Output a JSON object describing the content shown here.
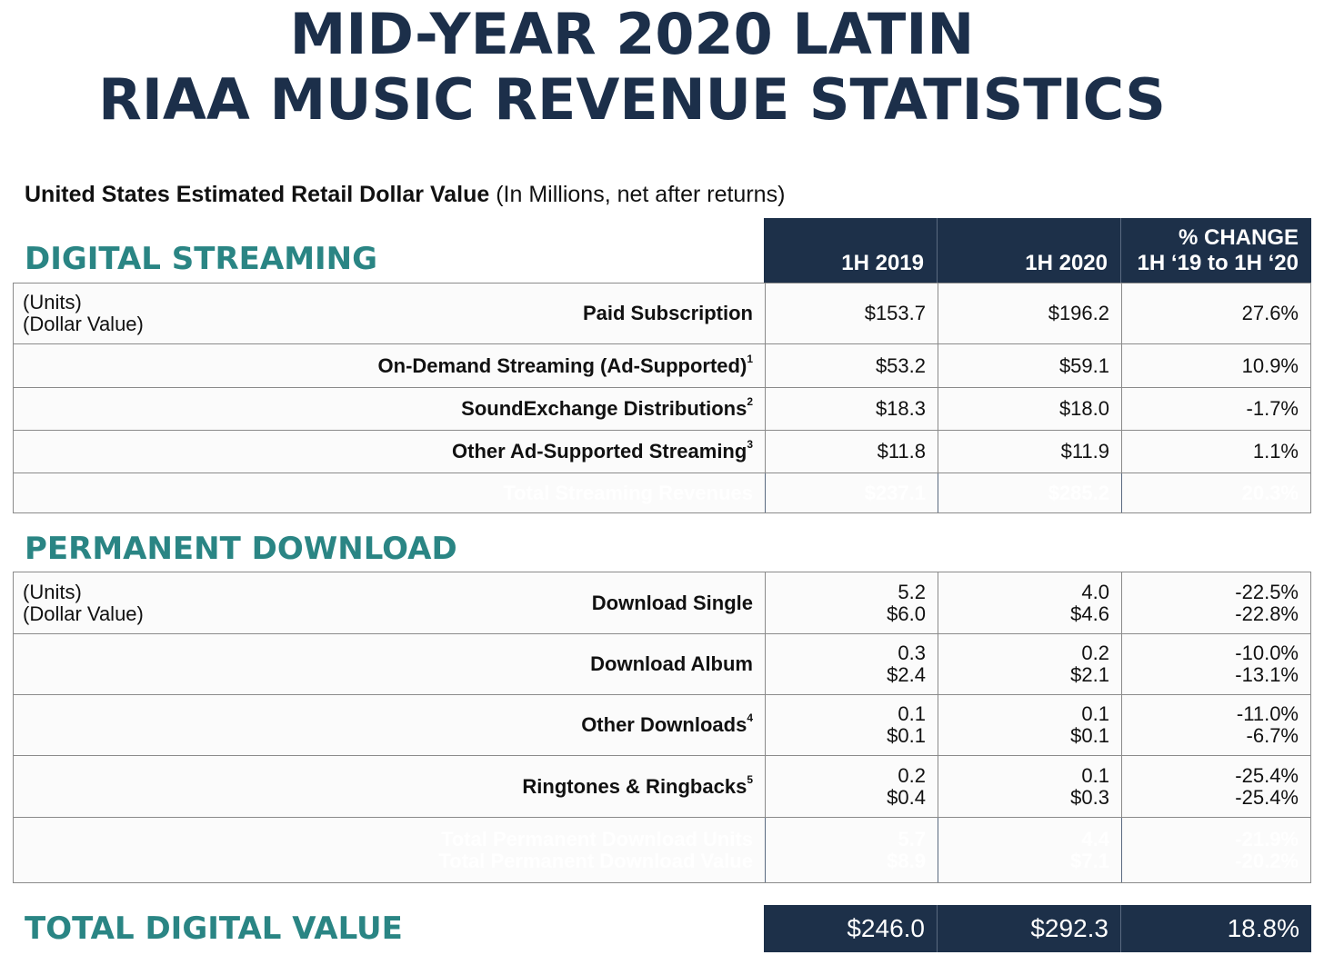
{
  "title": {
    "line1": "MID-YEAR 2020 LATIN",
    "line2": "RIAA MUSIC REVENUE STATISTICS"
  },
  "subtitle": {
    "bold": "United States Estimated Retail Dollar Value",
    "normal": " (In Millions, net after returns)"
  },
  "header": {
    "col1": "1H 2019",
    "col2": "1H 2020",
    "col3_line1": "% CHANGE",
    "col3_line2": "1H ‘19 to 1H ‘20"
  },
  "streaming": {
    "section_title": "DIGITAL STREAMING",
    "units_label": "(Units)",
    "value_label": "(Dollar Value)",
    "rows": [
      {
        "label": "Paid Subscription",
        "sup": "",
        "v2019": "$153.7",
        "v2020": "$196.2",
        "change": "27.6%"
      },
      {
        "label": "On-Demand Streaming (Ad-Supported)",
        "sup": "1",
        "v2019": "$53.2",
        "v2020": "$59.1",
        "change": "10.9%"
      },
      {
        "label": "SoundExchange Distributions",
        "sup": "2",
        "v2019": "$18.3",
        "v2020": "$18.0",
        "change": "-1.7%"
      },
      {
        "label": "Other Ad-Supported Streaming",
        "sup": "3",
        "v2019": "$11.8",
        "v2020": "$11.9",
        "change": "1.1%"
      }
    ],
    "total": {
      "label": "Total Streaming Revenues",
      "v2019": "$237.1",
      "v2020": "$285.2",
      "change": "20.3%"
    }
  },
  "download": {
    "section_title": "PERMANENT DOWNLOAD",
    "units_label": "(Units)",
    "value_label": "(Dollar Value)",
    "rows": [
      {
        "label": "Download Single",
        "sup": "",
        "u2019": "5.2",
        "d2019": "$6.0",
        "u2020": "4.0",
        "d2020": "$4.6",
        "uchange": "-22.5%",
        "dchange": "-22.8%"
      },
      {
        "label": "Download Album",
        "sup": "",
        "u2019": "0.3",
        "d2019": "$2.4",
        "u2020": "0.2",
        "d2020": "$2.1",
        "uchange": "-10.0%",
        "dchange": "-13.1%"
      },
      {
        "label": "Other Downloads",
        "sup": "4",
        "u2019": "0.1",
        "d2019": "$0.1",
        "u2020": "0.1",
        "d2020": "$0.1",
        "uchange": "-11.0%",
        "dchange": "-6.7%"
      },
      {
        "label": "Ringtones & Ringbacks",
        "sup": "5",
        "u2019": "0.2",
        "d2019": "$0.4",
        "u2020": "0.1",
        "d2020": "$0.3",
        "uchange": "-25.4%",
        "dchange": "-25.4%"
      }
    ],
    "total": {
      "label_units": "Total Permanent Download Units",
      "label_value": "Total Permanent Download Value",
      "u2019": "5.7",
      "d2019": "$8.9",
      "u2020": "4.4",
      "d2020": "$7.1",
      "uchange": "-21.9%",
      "dchange": "-20.2%"
    }
  },
  "total_digital": {
    "section_title": "TOTAL DIGITAL VALUE",
    "v2019": "$246.0",
    "v2020": "$292.3",
    "change": "18.8%"
  },
  "colors": {
    "navy": "#1d3049",
    "teal": "#2a8584",
    "title": "#1c2f4a"
  }
}
